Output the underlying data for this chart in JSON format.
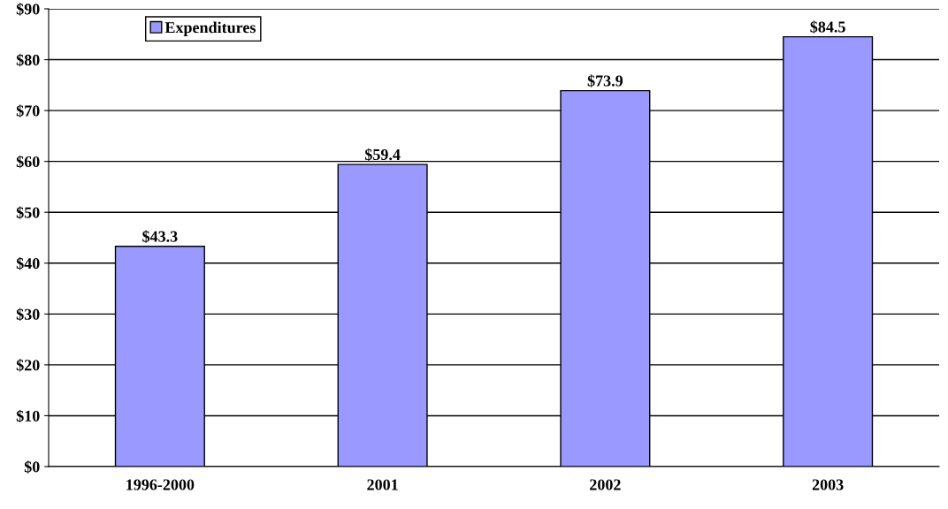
{
  "chart_data": {
    "type": "bar",
    "categories": [
      "1996-2000",
      "2001",
      "2002",
      "2003"
    ],
    "series": [
      {
        "name": "Expenditures",
        "color": "#9999ff",
        "values": [
          43.3,
          59.4,
          73.9,
          84.5
        ],
        "value_labels": [
          "$43.3",
          "$59.4",
          "$73.9",
          "$84.5"
        ]
      }
    ],
    "ylim": [
      0,
      90
    ],
    "yticks": [
      {
        "value": 0,
        "label": "$0"
      },
      {
        "value": 10,
        "label": "$10"
      },
      {
        "value": 20,
        "label": "$20"
      },
      {
        "value": 30,
        "label": "$30"
      },
      {
        "value": 40,
        "label": "$40"
      },
      {
        "value": 50,
        "label": "$50"
      },
      {
        "value": 60,
        "label": "$60"
      },
      {
        "value": 70,
        "label": "$70"
      },
      {
        "value": 80,
        "label": "$80"
      },
      {
        "value": 90,
        "label": "$90"
      }
    ],
    "grid": "y",
    "legend": "top left"
  }
}
